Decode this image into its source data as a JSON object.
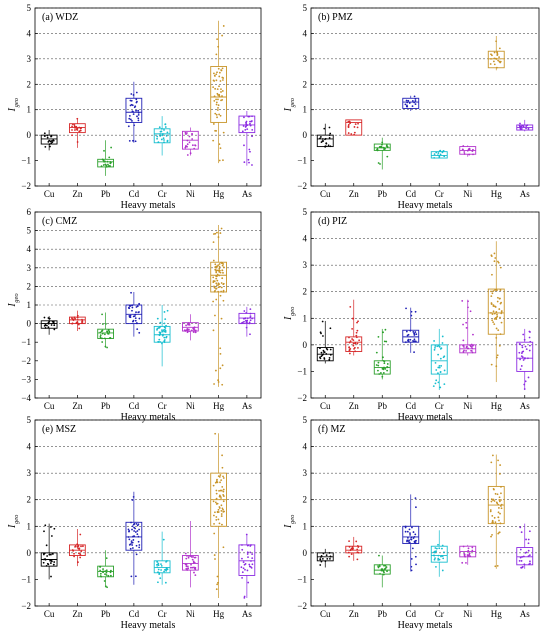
{
  "chart_data": [
    {
      "type": "box",
      "title": "(a) WDZ",
      "xlabel": "Heavy metals",
      "ylabel": "I",
      "ylabel_sub": "geo",
      "ylim": [
        -2,
        5
      ],
      "yticks": [
        -2,
        -1,
        0,
        1,
        2,
        3,
        4,
        5
      ],
      "threshold_lines": [
        0,
        1,
        2,
        3,
        4,
        5
      ],
      "categories": [
        "Cu",
        "Zn",
        "Pb",
        "Cd",
        "Cr",
        "Ni",
        "Hg",
        "As"
      ],
      "boxes": [
        {
          "q1": -0.35,
          "median": -0.15,
          "q3": 0.0,
          "min": -0.6,
          "max": 0.2
        },
        {
          "q1": 0.1,
          "median": 0.3,
          "q3": 0.45,
          "min": -0.5,
          "max": 0.65
        },
        {
          "q1": -1.25,
          "median": -1.05,
          "q3": -0.95,
          "min": -1.6,
          "max": -0.2
        },
        {
          "q1": 0.5,
          "median": 0.9,
          "q3": 1.45,
          "min": -0.3,
          "max": 2.1
        },
        {
          "q1": -0.3,
          "median": 0.05,
          "q3": 0.25,
          "min": -0.8,
          "max": 0.75
        },
        {
          "q1": -0.55,
          "median": -0.2,
          "q3": 0.15,
          "min": -0.8,
          "max": 0.3
        },
        {
          "q1": 0.5,
          "median": 1.5,
          "q3": 2.7,
          "min": -1.1,
          "max": 4.5
        },
        {
          "q1": 0.1,
          "median": 0.4,
          "q3": 0.75,
          "min": -1.2,
          "max": 0.95
        }
      ]
    },
    {
      "type": "box",
      "title": "(b) PMZ",
      "xlabel": "Heavy metals",
      "ylabel": "I",
      "ylabel_sub": "geo",
      "ylim": [
        -2,
        5
      ],
      "yticks": [
        -2,
        -1,
        0,
        1,
        2,
        3,
        4,
        5
      ],
      "threshold_lines": [
        0,
        1,
        2,
        3,
        4,
        5
      ],
      "categories": [
        "Cu",
        "Zn",
        "Pb",
        "Cd",
        "Cr",
        "Ni",
        "Hg",
        "As"
      ],
      "boxes": [
        {
          "q1": -0.45,
          "median": -0.15,
          "q3": 0.0,
          "min": -0.5,
          "max": 0.45
        },
        {
          "q1": 0.0,
          "median": 0.5,
          "q3": 0.6,
          "min": 0.0,
          "max": 0.6
        },
        {
          "q1": -0.6,
          "median": -0.5,
          "q3": -0.35,
          "min": -1.35,
          "max": -0.1
        },
        {
          "q1": 1.05,
          "median": 1.3,
          "q3": 1.45,
          "min": 0.95,
          "max": 1.55
        },
        {
          "q1": -0.9,
          "median": -0.8,
          "q3": -0.65,
          "min": -0.9,
          "max": -0.6
        },
        {
          "q1": -0.75,
          "median": -0.6,
          "q3": -0.45,
          "min": -0.85,
          "max": -0.4
        },
        {
          "q1": 2.65,
          "median": 3.0,
          "q3": 3.3,
          "min": 2.55,
          "max": 3.9
        },
        {
          "q1": 0.2,
          "median": 0.3,
          "q3": 0.4,
          "min": 0.15,
          "max": 0.6
        }
      ]
    },
    {
      "type": "box",
      "title": "(c) CMZ",
      "xlabel": "Heavy metals",
      "ylabel": "I",
      "ylabel_sub": "geo",
      "ylim": [
        -4,
        6
      ],
      "yticks": [
        -4,
        -3,
        -2,
        -1,
        0,
        1,
        2,
        3,
        4,
        5,
        6
      ],
      "threshold_lines": [
        0,
        1,
        2,
        3,
        4,
        5
      ],
      "categories": [
        "Cu",
        "Zn",
        "Pb",
        "Cd",
        "Cr",
        "Ni",
        "Hg",
        "As"
      ],
      "boxes": [
        {
          "q1": -0.25,
          "median": 0.0,
          "q3": 0.15,
          "min": -0.6,
          "max": 0.4
        },
        {
          "q1": 0.0,
          "median": 0.2,
          "q3": 0.35,
          "min": -0.4,
          "max": 0.7
        },
        {
          "q1": -0.8,
          "median": -0.5,
          "q3": -0.3,
          "min": -1.3,
          "max": 0.6
        },
        {
          "q1": 0.0,
          "median": 0.5,
          "q3": 1.0,
          "min": -0.7,
          "max": 1.7
        },
        {
          "q1": -1.0,
          "median": -0.6,
          "q3": -0.15,
          "min": -2.3,
          "max": 1.0
        },
        {
          "q1": -0.4,
          "median": -0.2,
          "q3": 0.05,
          "min": -0.9,
          "max": 0.5
        },
        {
          "q1": 1.7,
          "median": 2.6,
          "q3": 3.3,
          "min": -3.4,
          "max": 5.3
        },
        {
          "q1": 0.0,
          "median": 0.3,
          "q3": 0.55,
          "min": -0.7,
          "max": 0.9
        }
      ]
    },
    {
      "type": "box",
      "title": "(d) PIZ",
      "xlabel": "Heavy metals",
      "ylabel": "I",
      "ylabel_sub": "geo",
      "ylim": [
        -2,
        5
      ],
      "yticks": [
        -2,
        -1,
        0,
        1,
        2,
        3,
        4,
        5
      ],
      "threshold_lines": [
        0,
        1,
        2,
        3,
        4,
        5
      ],
      "categories": [
        "Cu",
        "Zn",
        "Pb",
        "Cd",
        "Cr",
        "Ni",
        "Hg",
        "As"
      ],
      "boxes": [
        {
          "q1": -0.6,
          "median": -0.35,
          "q3": -0.1,
          "min": -0.7,
          "max": 0.9
        },
        {
          "q1": -0.25,
          "median": 0.1,
          "q3": 0.3,
          "min": -0.4,
          "max": 1.7
        },
        {
          "q1": -1.1,
          "median": -0.85,
          "q3": -0.6,
          "min": -1.3,
          "max": 0.6
        },
        {
          "q1": 0.1,
          "median": 0.3,
          "q3": 0.55,
          "min": -0.3,
          "max": 1.4
        },
        {
          "q1": -1.1,
          "median": -0.6,
          "q3": 0.0,
          "min": -1.7,
          "max": 0.6
        },
        {
          "q1": -0.3,
          "median": -0.15,
          "q3": 0.0,
          "min": -0.4,
          "max": 1.7
        },
        {
          "q1": 0.4,
          "median": 1.2,
          "q3": 2.1,
          "min": -1.4,
          "max": 3.9
        },
        {
          "q1": -1.0,
          "median": -0.5,
          "q3": 0.1,
          "min": -1.7,
          "max": 0.6
        }
      ]
    },
    {
      "type": "box",
      "title": "(e) MSZ",
      "xlabel": "Heavy metals",
      "ylabel": "I",
      "ylabel_sub": "geo",
      "ylim": [
        -2,
        5
      ],
      "yticks": [
        -2,
        -1,
        0,
        1,
        2,
        3,
        4,
        5
      ],
      "threshold_lines": [
        0,
        1,
        2,
        3,
        4,
        5
      ],
      "categories": [
        "Cu",
        "Zn",
        "Pb",
        "Cd",
        "Cr",
        "Ni",
        "Hg",
        "As"
      ],
      "boxes": [
        {
          "q1": -0.5,
          "median": -0.25,
          "q3": 0.0,
          "min": -1.0,
          "max": 1.1
        },
        {
          "q1": -0.1,
          "median": 0.1,
          "q3": 0.3,
          "min": -0.5,
          "max": 0.9
        },
        {
          "q1": -0.9,
          "median": -0.7,
          "q3": -0.5,
          "min": -1.3,
          "max": 0.1
        },
        {
          "q1": 0.1,
          "median": 0.6,
          "q3": 1.15,
          "min": -1.2,
          "max": 2.3
        },
        {
          "q1": -0.75,
          "median": -0.55,
          "q3": -0.3,
          "min": -1.2,
          "max": 0.8
        },
        {
          "q1": -0.65,
          "median": -0.4,
          "q3": -0.1,
          "min": -1.3,
          "max": 1.2
        },
        {
          "q1": 1.0,
          "median": 2.0,
          "q3": 3.0,
          "min": -1.7,
          "max": 4.5
        },
        {
          "q1": -0.85,
          "median": -0.3,
          "q3": 0.3,
          "min": -1.7,
          "max": 0.7
        }
      ]
    },
    {
      "type": "box",
      "title": "(f) MZ",
      "xlabel": "Heavy metals",
      "ylabel": "I",
      "ylabel_sub": "geo",
      "ylim": [
        -2,
        5
      ],
      "yticks": [
        -2,
        -1,
        0,
        1,
        2,
        3,
        4,
        5
      ],
      "threshold_lines": [
        0,
        1,
        2,
        3,
        4,
        5
      ],
      "categories": [
        "Cu",
        "Zn",
        "Pb",
        "Cd",
        "Cr",
        "Ni",
        "Hg",
        "As"
      ],
      "boxes": [
        {
          "q1": -0.3,
          "median": -0.15,
          "q3": 0.0,
          "min": -0.55,
          "max": 0.15
        },
        {
          "q1": 0.0,
          "median": 0.1,
          "q3": 0.25,
          "min": -0.3,
          "max": 0.6
        },
        {
          "q1": -0.8,
          "median": -0.65,
          "q3": -0.45,
          "min": -1.3,
          "max": -0.1
        },
        {
          "q1": 0.35,
          "median": 0.6,
          "q3": 1.0,
          "min": -0.7,
          "max": 2.2
        },
        {
          "q1": -0.35,
          "median": -0.1,
          "q3": 0.25,
          "min": -0.9,
          "max": 0.85
        },
        {
          "q1": -0.15,
          "median": 0.05,
          "q3": 0.25,
          "min": -0.45,
          "max": 0.3
        },
        {
          "q1": 1.1,
          "median": 1.8,
          "q3": 2.5,
          "min": -0.6,
          "max": 3.7
        },
        {
          "q1": -0.45,
          "median": -0.15,
          "q3": 0.2,
          "min": -0.6,
          "max": 1.1
        }
      ]
    }
  ],
  "colors": {
    "Cu": "#000000",
    "Zn": "#d62728",
    "Pb": "#2ca02c",
    "Cd": "#1f1fb4",
    "Cr": "#17becf",
    "Ni": "#b233cc",
    "Hg": "#c8952a",
    "As": "#8b2be2",
    "grid": "#555555"
  }
}
